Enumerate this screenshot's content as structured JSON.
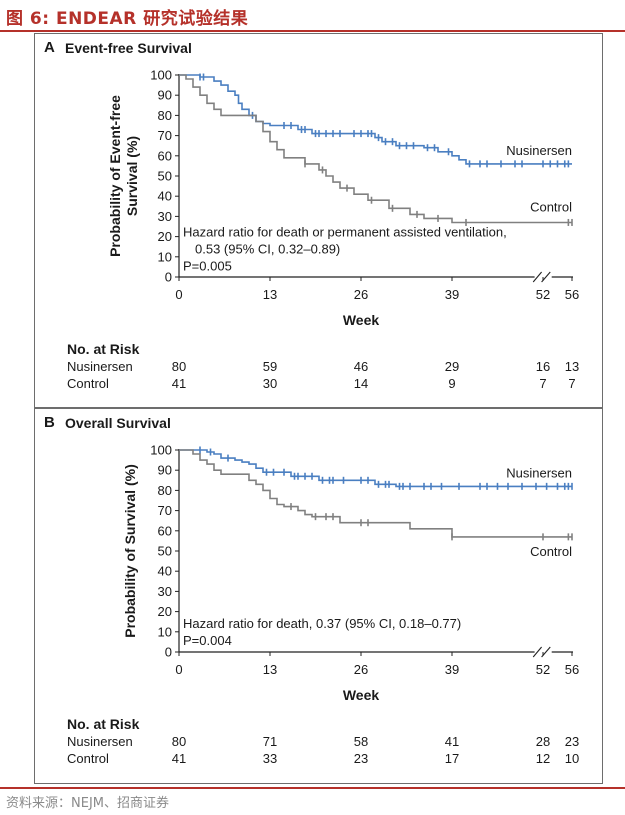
{
  "figure": {
    "title": "图 6:  ENDEAR 研究试验结果",
    "source": "资料来源：NEJM、招商证券"
  },
  "colors": {
    "nusinersen": "#4a7fc1",
    "control": "#808080",
    "title": "#b5312a"
  },
  "risk_table_header": "No. at Risk",
  "chart_data": [
    {
      "panel": "A",
      "type": "line",
      "title": "Event-free Survival",
      "xlabel": "Week",
      "ylabel": "Probability of Event-free Survival (%)",
      "ylabel_lines": [
        "Probability of Event-free",
        "Survival (%)"
      ],
      "xlim": [
        0,
        56
      ],
      "ylim": [
        0,
        100
      ],
      "xticks": [
        0,
        13,
        26,
        39,
        52,
        56
      ],
      "yticks": [
        0,
        10,
        20,
        30,
        40,
        50,
        60,
        70,
        80,
        90,
        100
      ],
      "annotation": [
        "Hazard ratio for death or permanent assisted ventilation,",
        "0.53 (95% CI, 0.32–0.89)",
        "P=0.005"
      ],
      "series": [
        {
          "name": "Nusinersen",
          "key": "nusinersen",
          "steps": [
            [
              0,
              100
            ],
            [
              3,
              100
            ],
            [
              3,
              99
            ],
            [
              5,
              99
            ],
            [
              5,
              97
            ],
            [
              6,
              97
            ],
            [
              6,
              95
            ],
            [
              7,
              95
            ],
            [
              7,
              92
            ],
            [
              8,
              92
            ],
            [
              8,
              90
            ],
            [
              8.5,
              90
            ],
            [
              8.5,
              86
            ],
            [
              9,
              86
            ],
            [
              9,
              83
            ],
            [
              10,
              83
            ],
            [
              10,
              80
            ],
            [
              11,
              80
            ],
            [
              11,
              77
            ],
            [
              12,
              77
            ],
            [
              12,
              76
            ],
            [
              13,
              76
            ],
            [
              13,
              75
            ],
            [
              17,
              75
            ],
            [
              17,
              73
            ],
            [
              19,
              73
            ],
            [
              19,
              71
            ],
            [
              28,
              71
            ],
            [
              28,
              69
            ],
            [
              29,
              69
            ],
            [
              29,
              67
            ],
            [
              31,
              67
            ],
            [
              31,
              65
            ],
            [
              35,
              65
            ],
            [
              35,
              64
            ],
            [
              37,
              64
            ],
            [
              37,
              62
            ],
            [
              39,
              62
            ],
            [
              39,
              60
            ],
            [
              40,
              60
            ],
            [
              40,
              58
            ],
            [
              41,
              58
            ],
            [
              41,
              56
            ],
            [
              56,
              56
            ]
          ],
          "censor": [
            3,
            3.5,
            10.5,
            15,
            16,
            17.5,
            18,
            19.5,
            20,
            21,
            22,
            23,
            25,
            26,
            27,
            27.5,
            28.5,
            29.5,
            30.5,
            31.5,
            32.5,
            33.5,
            35.5,
            36.5,
            38.5,
            41.5,
            43,
            44,
            46,
            48,
            49,
            52,
            53,
            54,
            55,
            55.5
          ]
        },
        {
          "name": "Control",
          "key": "control",
          "steps": [
            [
              0,
              100
            ],
            [
              1,
              100
            ],
            [
              1,
              98
            ],
            [
              2,
              98
            ],
            [
              2,
              94
            ],
            [
              3,
              94
            ],
            [
              3,
              90
            ],
            [
              4,
              90
            ],
            [
              4,
              86
            ],
            [
              5,
              86
            ],
            [
              5,
              83
            ],
            [
              6,
              83
            ],
            [
              6,
              80
            ],
            [
              11,
              80
            ],
            [
              11,
              77
            ],
            [
              12,
              77
            ],
            [
              12,
              72
            ],
            [
              13,
              72
            ],
            [
              13,
              67
            ],
            [
              14,
              67
            ],
            [
              14,
              63
            ],
            [
              15,
              63
            ],
            [
              15,
              59
            ],
            [
              18,
              59
            ],
            [
              18,
              56
            ],
            [
              20,
              56
            ],
            [
              20,
              53
            ],
            [
              21,
              53
            ],
            [
              21,
              50
            ],
            [
              22,
              50
            ],
            [
              22,
              47
            ],
            [
              23,
              47
            ],
            [
              23,
              44
            ],
            [
              25,
              44
            ],
            [
              25,
              41
            ],
            [
              27,
              41
            ],
            [
              27,
              38
            ],
            [
              30,
              38
            ],
            [
              30,
              34
            ],
            [
              33,
              34
            ],
            [
              33,
              31
            ],
            [
              35,
              31
            ],
            [
              35,
              29
            ],
            [
              39,
              29
            ],
            [
              39,
              27
            ],
            [
              56,
              27
            ]
          ],
          "censor": [
            18,
            20.5,
            24,
            27.5,
            30.5,
            34,
            37,
            41,
            55.5,
            56
          ]
        }
      ],
      "risk_table": {
        "weeks": [
          0,
          13,
          26,
          39,
          52,
          56
        ],
        "rows": [
          {
            "label": "Nusinersen",
            "values": [
              "80",
              "59",
              "46",
              "29",
              "16",
              "13"
            ]
          },
          {
            "label": "Control",
            "values": [
              "41",
              "30",
              "14",
              "9",
              "7",
              "7"
            ]
          }
        ]
      }
    },
    {
      "panel": "B",
      "type": "line",
      "title": "Overall Survival",
      "xlabel": "Week",
      "ylabel": "Probability of Survival (%)",
      "ylabel_lines": [
        "Probability of Survival (%)"
      ],
      "xlim": [
        0,
        56
      ],
      "ylim": [
        0,
        100
      ],
      "xticks": [
        0,
        13,
        26,
        39,
        52,
        56
      ],
      "yticks": [
        0,
        10,
        20,
        30,
        40,
        50,
        60,
        70,
        80,
        90,
        100
      ],
      "annotation": [
        "Hazard ratio for death, 0.37 (95% CI, 0.18–0.77)",
        "P=0.004"
      ],
      "series": [
        {
          "name": "Nusinersen",
          "key": "nusinersen",
          "steps": [
            [
              0,
              100
            ],
            [
              4,
              100
            ],
            [
              4,
              99
            ],
            [
              5,
              99
            ],
            [
              5,
              98
            ],
            [
              6,
              98
            ],
            [
              6,
              96
            ],
            [
              8,
              96
            ],
            [
              8,
              95
            ],
            [
              9,
              95
            ],
            [
              9,
              94
            ],
            [
              10,
              94
            ],
            [
              10,
              93
            ],
            [
              11,
              93
            ],
            [
              11,
              91
            ],
            [
              12,
              91
            ],
            [
              12,
              89
            ],
            [
              16,
              89
            ],
            [
              16,
              87
            ],
            [
              20,
              87
            ],
            [
              20,
              85
            ],
            [
              28,
              85
            ],
            [
              28,
              83
            ],
            [
              31,
              83
            ],
            [
              31,
              82
            ],
            [
              56,
              82
            ]
          ],
          "censor": [
            3,
            4.5,
            7,
            12.5,
            13.5,
            15,
            16.5,
            17,
            18,
            19,
            20.5,
            21.5,
            22,
            23.5,
            26,
            27,
            28.5,
            29.5,
            30,
            31.5,
            32,
            33,
            35,
            36,
            37.5,
            40,
            43,
            44,
            45.5,
            47,
            49,
            51,
            52.5,
            54,
            55,
            55.5,
            56
          ]
        },
        {
          "name": "Control",
          "key": "control",
          "steps": [
            [
              0,
              100
            ],
            [
              2,
              100
            ],
            [
              2,
              98
            ],
            [
              3,
              98
            ],
            [
              3,
              95
            ],
            [
              4,
              95
            ],
            [
              4,
              93
            ],
            [
              5,
              93
            ],
            [
              5,
              90
            ],
            [
              6,
              90
            ],
            [
              6,
              88
            ],
            [
              10,
              88
            ],
            [
              10,
              85
            ],
            [
              11,
              85
            ],
            [
              11,
              83
            ],
            [
              12,
              83
            ],
            [
              12,
              80
            ],
            [
              13,
              80
            ],
            [
              13,
              76
            ],
            [
              14,
              76
            ],
            [
              14,
              73
            ],
            [
              15,
              73
            ],
            [
              15,
              72
            ],
            [
              17,
              72
            ],
            [
              17,
              70
            ],
            [
              18,
              70
            ],
            [
              18,
              68
            ],
            [
              19,
              68
            ],
            [
              19,
              67
            ],
            [
              23,
              67
            ],
            [
              23,
              64
            ],
            [
              33,
              64
            ],
            [
              33,
              61
            ],
            [
              39,
              61
            ],
            [
              39,
              57
            ],
            [
              56,
              57
            ]
          ],
          "censor": [
            16,
            19.5,
            21,
            22,
            26,
            27,
            39,
            52,
            55.5,
            56
          ]
        }
      ],
      "risk_table": {
        "weeks": [
          0,
          13,
          26,
          39,
          52,
          56
        ],
        "rows": [
          {
            "label": "Nusinersen",
            "values": [
              "80",
              "71",
              "58",
              "41",
              "28",
              "23"
            ]
          },
          {
            "label": "Control",
            "values": [
              "41",
              "33",
              "23",
              "17",
              "12",
              "10"
            ]
          }
        ]
      }
    }
  ]
}
